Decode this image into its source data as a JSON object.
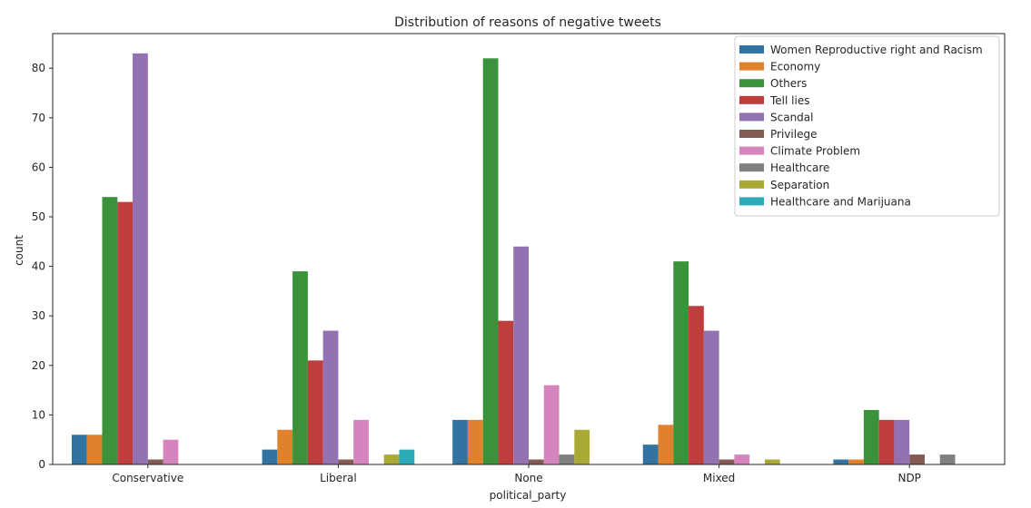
{
  "chart_data": {
    "type": "bar",
    "title": "Distribution of reasons of negative tweets",
    "xlabel": "political_party",
    "ylabel": "count",
    "ylim": [
      0,
      87
    ],
    "yticks": [
      0,
      10,
      20,
      30,
      40,
      50,
      60,
      70,
      80
    ],
    "grid": false,
    "legend_position": "top-right",
    "categories": [
      "Conservative",
      "Liberal",
      "None",
      "Mixed",
      "NDP"
    ],
    "series": [
      {
        "name": "Women Reproductive right and Racism",
        "color": "#3274a1",
        "values": [
          6,
          3,
          9,
          4,
          1
        ]
      },
      {
        "name": "Economy",
        "color": "#e1812c",
        "values": [
          6,
          7,
          9,
          8,
          1
        ]
      },
      {
        "name": "Others",
        "color": "#3a923a",
        "values": [
          54,
          39,
          82,
          41,
          11
        ]
      },
      {
        "name": "Tell lies",
        "color": "#c03d3e",
        "values": [
          53,
          21,
          29,
          32,
          9
        ]
      },
      {
        "name": "Scandal",
        "color": "#9372b2",
        "values": [
          83,
          27,
          44,
          27,
          9
        ]
      },
      {
        "name": "Privilege",
        "color": "#845b53",
        "values": [
          1,
          1,
          1,
          1,
          2
        ]
      },
      {
        "name": "Climate Problem",
        "color": "#d684bd",
        "values": [
          5,
          9,
          16,
          2,
          0
        ]
      },
      {
        "name": "Healthcare",
        "color": "#7f7f7f",
        "values": [
          0,
          0,
          2,
          0,
          2
        ]
      },
      {
        "name": "Separation",
        "color": "#a9aa35",
        "values": [
          0,
          2,
          7,
          1,
          0
        ]
      },
      {
        "name": "Healthcare and Marijuana",
        "color": "#2eabb8",
        "values": [
          0,
          3,
          0,
          0,
          0
        ]
      }
    ]
  }
}
